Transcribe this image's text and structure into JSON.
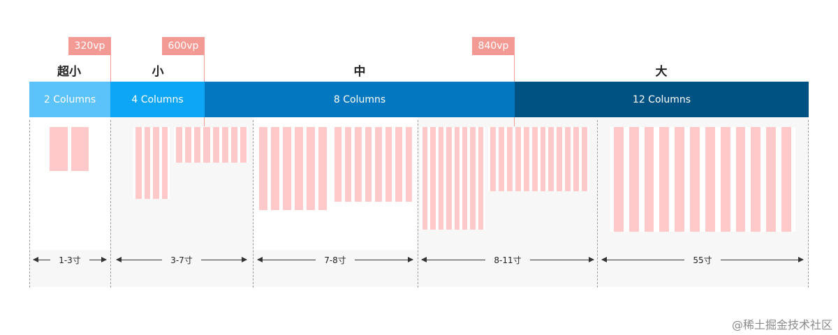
{
  "breakpoints": [
    {
      "label": "320vp"
    },
    {
      "label": "600vp"
    },
    {
      "label": "840vp"
    }
  ],
  "sizes": [
    {
      "label": "超小"
    },
    {
      "label": "小"
    },
    {
      "label": "中"
    },
    {
      "label": "大"
    }
  ],
  "bands": [
    {
      "label": "2 Columns",
      "color": "#5cc2fa"
    },
    {
      "label": "4 Columns",
      "color": "#0da5f5"
    },
    {
      "label": "8 Columns",
      "color": "#0378c0"
    },
    {
      "label": "12 Columns",
      "color": "#005282"
    }
  ],
  "ranges": [
    {
      "label": "1-3寸"
    },
    {
      "label": "3-7寸"
    },
    {
      "label": "7-8寸"
    },
    {
      "label": "8-11寸"
    },
    {
      "label": "55寸"
    }
  ],
  "grids": [
    {
      "columns": 2
    },
    {
      "columns": 4
    },
    {
      "columns": 8
    },
    {
      "columns": 6
    },
    {
      "columns": 8
    },
    {
      "columns": 8
    },
    {
      "columns": 12
    },
    {
      "columns": 12
    }
  ],
  "colors": {
    "grid_column": "#ffc9c9",
    "breakpoint": "#f49a94"
  },
  "watermark": "@稀土掘金技术社区"
}
